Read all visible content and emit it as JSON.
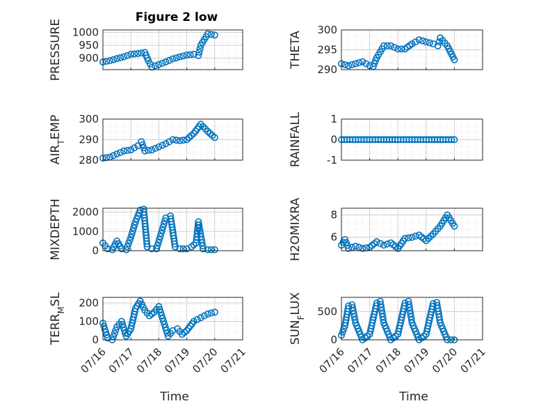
{
  "figure": {
    "title": "Figure 2 low",
    "xlabel": "Time",
    "date_ticks": [
      "07/16",
      "07/17",
      "07/18",
      "07/19",
      "07/20",
      "07/21"
    ]
  },
  "colors": {
    "marker": "#0072BD",
    "grid": "#d9d9d9",
    "axis": "#262626"
  },
  "chart_data": [
    {
      "type": "scatter",
      "ylabel": "PRESSURE",
      "title": "Figure 2 low",
      "ylim": [
        855,
        1010
      ],
      "yticks": [
        900,
        950,
        1000
      ],
      "xlim": [
        "07/16",
        "07/21"
      ],
      "grid": true,
      "x": [
        "07/16 00:00",
        "07/16 06:00",
        "07/16 12:00",
        "07/16 18:00",
        "07/17 00:00",
        "07/17 06:00",
        "07/17 12:00",
        "07/17 15:00",
        "07/17 18:00",
        "07/18 00:00",
        "07/18 06:00",
        "07/18 12:00",
        "07/18 18:00",
        "07/19 00:00",
        "07/19 06:00",
        "07/19 10:00",
        "07/19 12:00",
        "07/19 18:00",
        "07/20 00:00"
      ],
      "y": [
        885,
        890,
        898,
        905,
        915,
        918,
        922,
        890,
        865,
        875,
        885,
        897,
        905,
        912,
        915,
        910,
        950,
        995,
        990
      ]
    },
    {
      "type": "scatter",
      "ylabel": "THETA",
      "ylim": [
        290,
        300
      ],
      "yticks": [
        290,
        295,
        300
      ],
      "xlim": [
        "07/16",
        "07/21"
      ],
      "grid": true,
      "x": [
        "07/16 00:00",
        "07/16 06:00",
        "07/16 12:00",
        "07/16 18:00",
        "07/17 00:00",
        "07/17 03:00",
        "07/17 06:00",
        "07/17 12:00",
        "07/17 18:00",
        "07/18 00:00",
        "07/18 06:00",
        "07/18 12:00",
        "07/18 18:00",
        "07/19 00:00",
        "07/19 06:00",
        "07/19 10:00",
        "07/19 12:00",
        "07/19 18:00",
        "07/20 00:00"
      ],
      "y": [
        291.5,
        291,
        291.5,
        292,
        291,
        290.8,
        293,
        296,
        296,
        295.2,
        295.2,
        296.5,
        297.5,
        297,
        296.5,
        296,
        298,
        296,
        292.5
      ]
    },
    {
      "type": "scatter",
      "ylabel": "AIR_TEMP",
      "ylim": [
        280,
        300
      ],
      "yticks": [
        280,
        290,
        300
      ],
      "xlim": [
        "07/16",
        "07/21"
      ],
      "grid": true,
      "x": [
        "07/16 00:00",
        "07/16 06:00",
        "07/16 12:00",
        "07/16 18:00",
        "07/17 00:00",
        "07/17 06:00",
        "07/17 09:00",
        "07/17 12:00",
        "07/17 18:00",
        "07/18 00:00",
        "07/18 06:00",
        "07/18 12:00",
        "07/18 18:00",
        "07/19 00:00",
        "07/19 06:00",
        "07/19 12:00",
        "07/19 18:00",
        "07/20 00:00"
      ],
      "y": [
        281,
        281.5,
        283,
        284.5,
        285,
        287,
        289,
        284.5,
        285,
        286.5,
        288,
        290,
        289.5,
        290,
        293,
        297.5,
        294,
        291
      ]
    },
    {
      "type": "scatter",
      "ylabel": "RAINFALL",
      "ylim": [
        -1,
        1
      ],
      "yticks": [
        -1,
        0,
        1
      ],
      "xlim": [
        "07/16",
        "07/21"
      ],
      "grid": true,
      "x": [
        "07/16 00:00",
        "07/17 00:00",
        "07/18 00:00",
        "07/19 00:00",
        "07/20 00:00"
      ],
      "y": [
        0,
        0,
        0,
        0,
        0
      ]
    },
    {
      "type": "scatter",
      "ylabel": "MIXDEPTH",
      "ylim": [
        0,
        2200
      ],
      "yticks": [
        0,
        1000,
        2000
      ],
      "xlim": [
        "07/16",
        "07/21"
      ],
      "grid": true,
      "x": [
        "07/16 00:00",
        "07/16 04:00",
        "07/16 08:00",
        "07/16 12:00",
        "07/16 16:00",
        "07/16 20:00",
        "07/17 00:00",
        "07/17 04:00",
        "07/17 08:00",
        "07/17 11:00",
        "07/17 14:00",
        "07/17 18:00",
        "07/17 22:00",
        "07/18 02:00",
        "07/18 06:00",
        "07/18 10:00",
        "07/18 14:00",
        "07/18 18:00",
        "07/19 00:00",
        "07/19 04:00",
        "07/19 08:00",
        "07/19 10:00",
        "07/19 14:00",
        "07/19 18:00",
        "07/20 00:00"
      ],
      "y": [
        400,
        100,
        50,
        500,
        100,
        50,
        700,
        1500,
        2100,
        2150,
        200,
        100,
        100,
        900,
        1700,
        1800,
        200,
        100,
        100,
        200,
        400,
        1500,
        100,
        50,
        50
      ]
    },
    {
      "type": "scatter",
      "ylabel": "H2OMIXRA",
      "ylim": [
        4.8,
        8.6
      ],
      "yticks": [
        6,
        8
      ],
      "xlim": [
        "07/16",
        "07/21"
      ],
      "grid": true,
      "x": [
        "07/16 00:00",
        "07/16 03:00",
        "07/16 06:00",
        "07/16 12:00",
        "07/16 18:00",
        "07/17 00:00",
        "07/17 06:00",
        "07/17 12:00",
        "07/17 18:00",
        "07/18 00:00",
        "07/18 06:00",
        "07/18 12:00",
        "07/18 18:00",
        "07/19 00:00",
        "07/19 06:00",
        "07/19 12:00",
        "07/19 18:00",
        "07/20 00:00"
      ],
      "y": [
        5.3,
        5.8,
        5,
        5.2,
        5,
        5.1,
        5.6,
        5.3,
        5.5,
        5,
        5.9,
        6,
        6.2,
        5.7,
        6.3,
        7,
        8,
        7
      ]
    },
    {
      "type": "scatter",
      "ylabel": "TERR_MSL",
      "ylim": [
        0,
        230
      ],
      "yticks": [
        0,
        100,
        200
      ],
      "xlim": [
        "07/16",
        "07/21"
      ],
      "grid": true,
      "x": [
        "07/16 00:00",
        "07/16 04:00",
        "07/16 08:00",
        "07/16 12:00",
        "07/16 16:00",
        "07/16 20:00",
        "07/17 00:00",
        "07/17 04:00",
        "07/17 08:00",
        "07/17 12:00",
        "07/17 16:00",
        "07/17 20:00",
        "07/18 00:00",
        "07/18 04:00",
        "07/18 08:00",
        "07/18 12:00",
        "07/18 16:00",
        "07/18 20:00",
        "07/19 00:00",
        "07/19 06:00",
        "07/19 12:00",
        "07/19 18:00",
        "07/20 00:00"
      ],
      "y": [
        90,
        10,
        0,
        70,
        100,
        20,
        60,
        170,
        210,
        160,
        130,
        150,
        180,
        100,
        20,
        50,
        60,
        30,
        50,
        100,
        120,
        140,
        150
      ]
    },
    {
      "type": "scatter",
      "ylabel": "SUN_FLUX",
      "ylim": [
        0,
        750
      ],
      "yticks": [
        0,
        500
      ],
      "xlim": [
        "07/16",
        "07/21"
      ],
      "grid": true,
      "x": [
        "07/16 00:00",
        "07/16 03:00",
        "07/16 06:00",
        "07/16 09:00",
        "07/16 12:00",
        "07/16 18:00",
        "07/17 00:00",
        "07/17 06:00",
        "07/17 09:00",
        "07/17 12:00",
        "07/17 18:00",
        "07/18 00:00",
        "07/18 06:00",
        "07/18 09:00",
        "07/18 12:00",
        "07/18 18:00",
        "07/19 00:00",
        "07/19 06:00",
        "07/19 09:00",
        "07/19 12:00",
        "07/19 18:00",
        "07/20 00:00"
      ],
      "y": [
        80,
        250,
        600,
        620,
        300,
        0,
        100,
        650,
        680,
        300,
        0,
        100,
        650,
        680,
        300,
        0,
        100,
        640,
        660,
        300,
        0,
        0
      ]
    }
  ]
}
